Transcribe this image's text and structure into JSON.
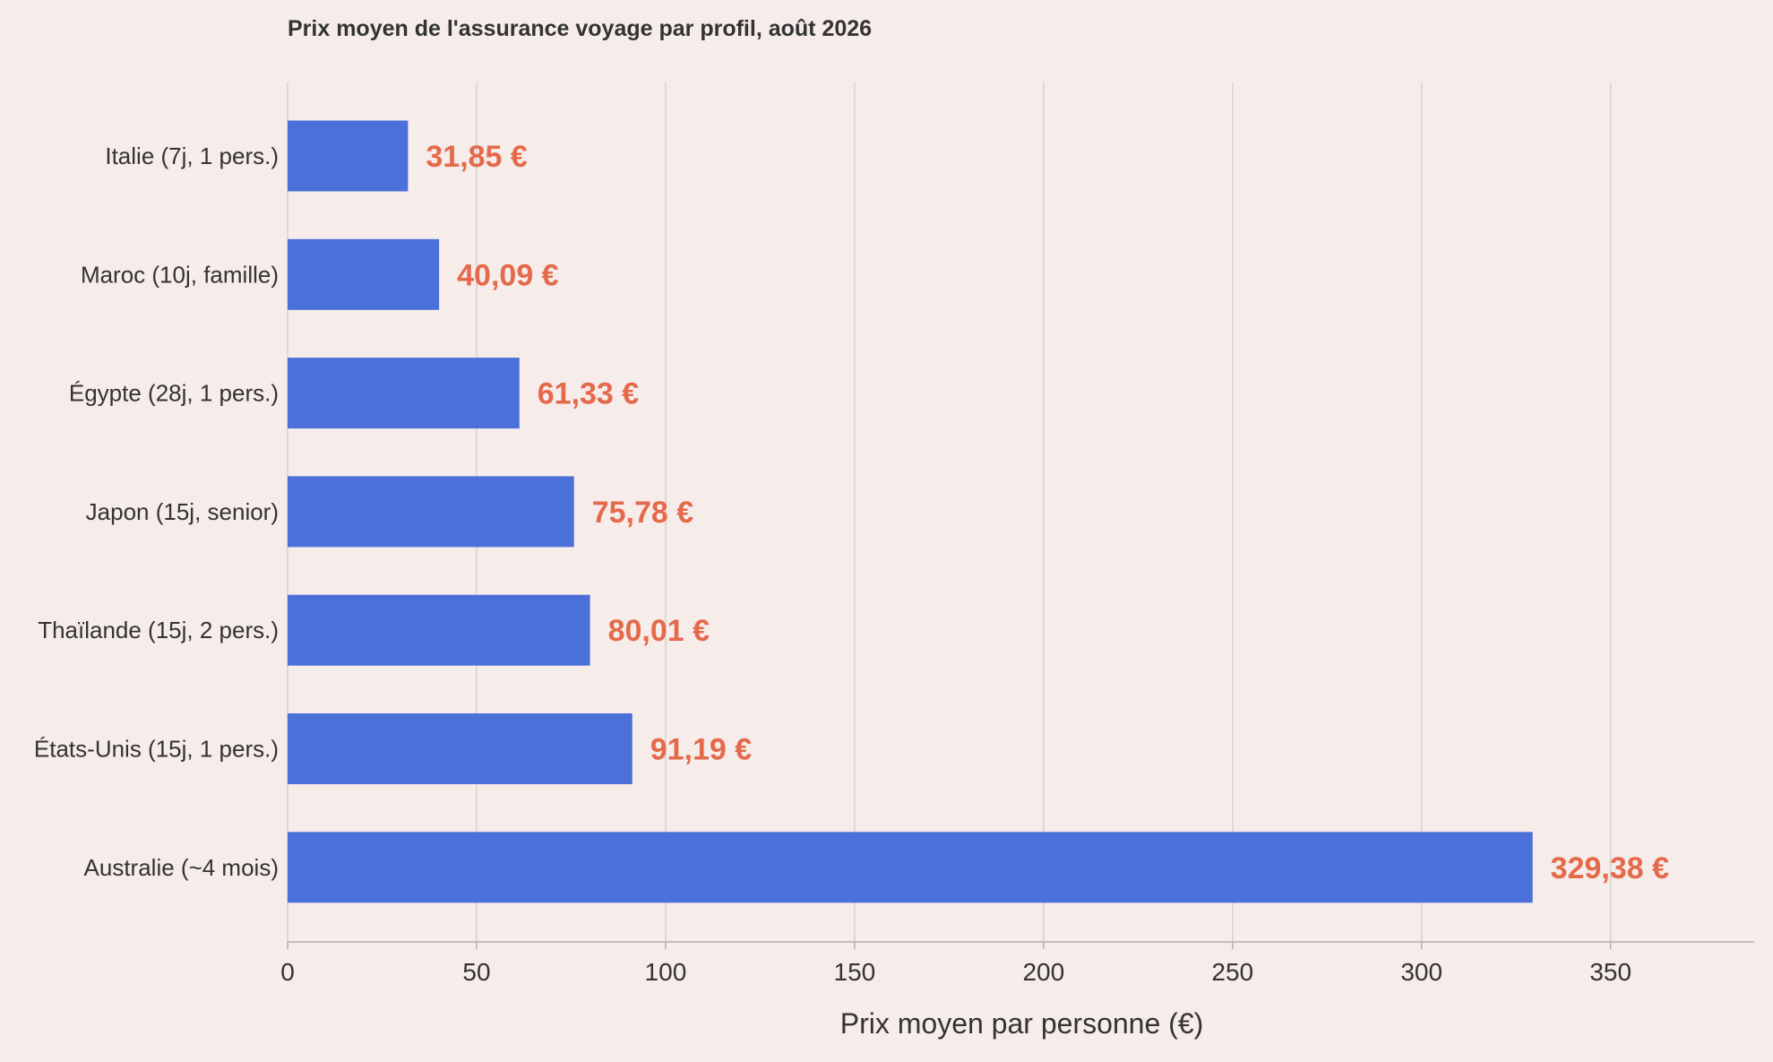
{
  "chart_data": {
    "type": "bar",
    "orientation": "horizontal",
    "title": "Prix moyen de l'assurance voyage par profil, août 2026",
    "xlabel": "Prix moyen par personne (€)",
    "ylabel": "",
    "categories": [
      "Italie (7j, 1 pers.)",
      "Maroc (10j, famille)",
      "Égypte (28j, 1 pers.)",
      "Japon (15j, senior)",
      "Thaïlande (15j, 2 pers.)",
      "États-Unis (15j, 1 pers.)",
      "Australie (~4 mois)"
    ],
    "values": [
      31.85,
      40.09,
      61.33,
      75.78,
      80.01,
      91.19,
      329.38
    ],
    "value_labels": [
      "31,85 €",
      "40,09 €",
      "61,33 €",
      "75,78 €",
      "80,01 €",
      "91,19 €",
      "329,38 €"
    ],
    "xlim": [
      0,
      388
    ],
    "xticks": [
      0,
      50,
      100,
      150,
      200,
      250,
      300,
      350
    ],
    "xtick_labels": [
      "0",
      "50",
      "100",
      "150",
      "200",
      "250",
      "300",
      "350"
    ],
    "grid": "vertical",
    "legend": "none",
    "colors": {
      "bar": "#4b70d9",
      "value_label": "#e5694b",
      "background": "#f6ecea",
      "text": "#333333",
      "grid": "#d9d2d0",
      "axis": "#b7aeac"
    }
  }
}
